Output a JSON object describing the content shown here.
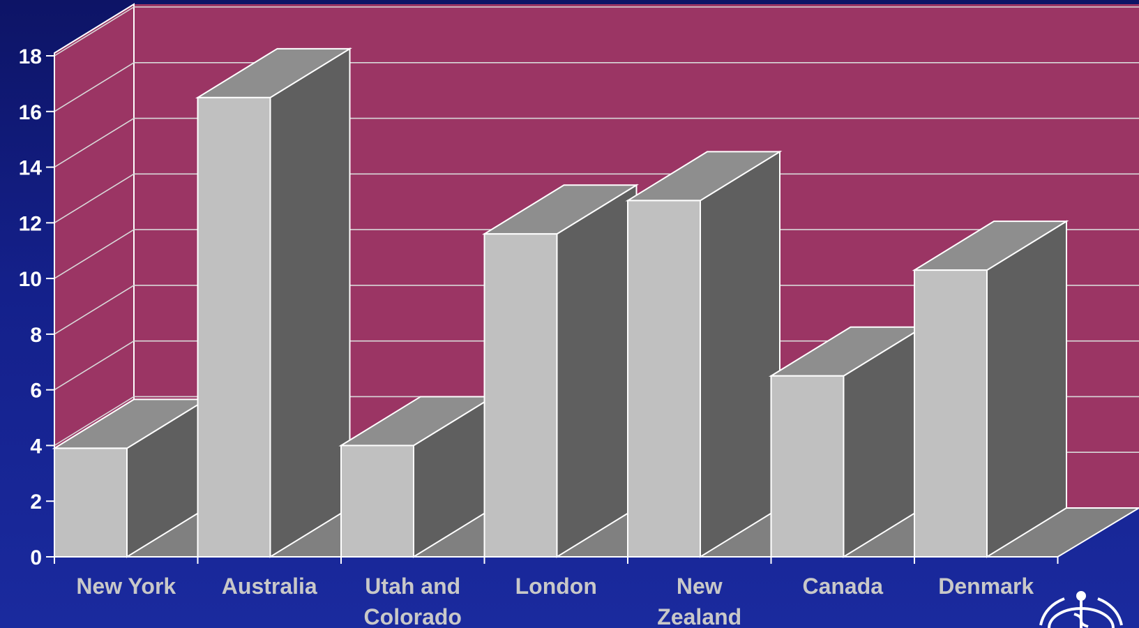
{
  "chart_data": {
    "type": "bar",
    "categories": [
      "New York",
      "Australia",
      "Utah and Colorado",
      "London",
      "New Zealand",
      "Canada",
      "Denmark"
    ],
    "category_label_lines": [
      [
        "New York"
      ],
      [
        "Australia"
      ],
      [
        "Utah and",
        "Colorado"
      ],
      [
        "London"
      ],
      [
        "New",
        "Zealand"
      ],
      [
        "Canada"
      ],
      [
        "Denmark"
      ]
    ],
    "values": [
      3.9,
      16.5,
      4.0,
      11.6,
      12.8,
      6.5,
      10.3
    ],
    "title": "",
    "xlabel": "",
    "ylabel": "",
    "ylim": [
      0,
      18
    ],
    "yticks": [
      0,
      2,
      4,
      6,
      8,
      10,
      12,
      14,
      16,
      18
    ],
    "grid": true,
    "three_d": true
  },
  "colors": {
    "background": "#14208a",
    "wall": "#9b3564",
    "floor": "#808080",
    "bar_front": "#c0c0c0",
    "bar_side": "#5f5f5f",
    "bar_top": "#8e8e8e",
    "edge": "#ffffff",
    "tick_label": "#ffffff",
    "category_label": "#c8c8c8"
  },
  "logo": {
    "icon": "who-emblem-icon"
  }
}
